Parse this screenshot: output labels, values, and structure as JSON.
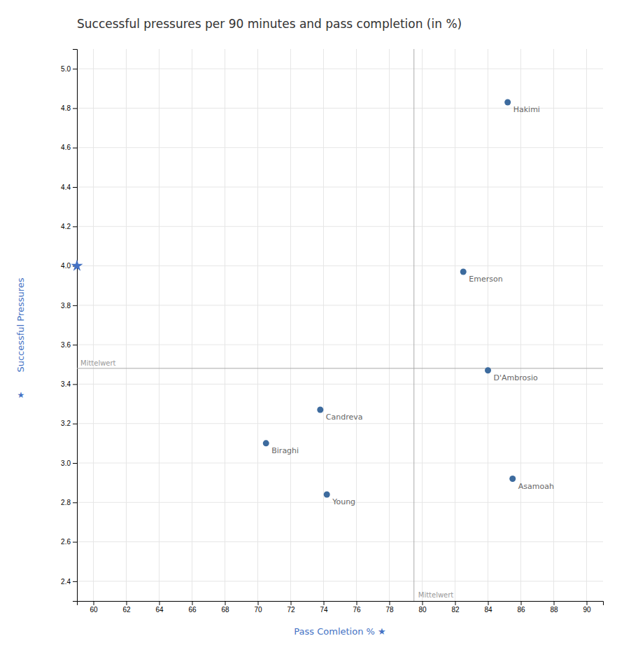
{
  "chart_data": {
    "type": "scatter",
    "title": "Successful pressures per 90 minutes and pass completion (in %)",
    "x_label": "Pass Comletion % ★",
    "y_label": "Successful Pressures",
    "y_label_symbol": "★",
    "xlim": [
      59,
      91
    ],
    "ylim": [
      2.3,
      5.1
    ],
    "xticks": [
      60,
      62,
      64,
      66,
      68,
      70,
      72,
      74,
      76,
      78,
      80,
      82,
      84,
      86,
      88,
      90
    ],
    "yticks": [
      2.4,
      2.6,
      2.8,
      {
        "value": 3.0,
        "label": "3.0"
      },
      3.2,
      3.4,
      3.6,
      3.8,
      {
        "value": 4.0,
        "label": "4.0"
      },
      4.2,
      4.4,
      4.6,
      4.8,
      {
        "value": 5.0,
        "label": "5.0"
      }
    ],
    "grid": true,
    "color": "#3d6b9e",
    "x": [
      85.2,
      82.5,
      84.0,
      73.8,
      70.5,
      74.2,
      85.5
    ],
    "values": [
      4.83,
      3.97,
      3.47,
      3.27,
      3.1,
      2.84,
      2.92
    ],
    "point_labels": [
      "Hakimi",
      "Emerson",
      "D'Ambrosio",
      "Candreva",
      "Biraghi",
      "Young",
      "Asamoah"
    ],
    "reference_lines": [
      {
        "axis": "x",
        "value": 79.5,
        "label": "Mittelwert"
      },
      {
        "axis": "y",
        "value": 3.48,
        "label": "Mittelwert"
      }
    ],
    "y_marker": {
      "y": 4.0,
      "marker": "star"
    }
  }
}
